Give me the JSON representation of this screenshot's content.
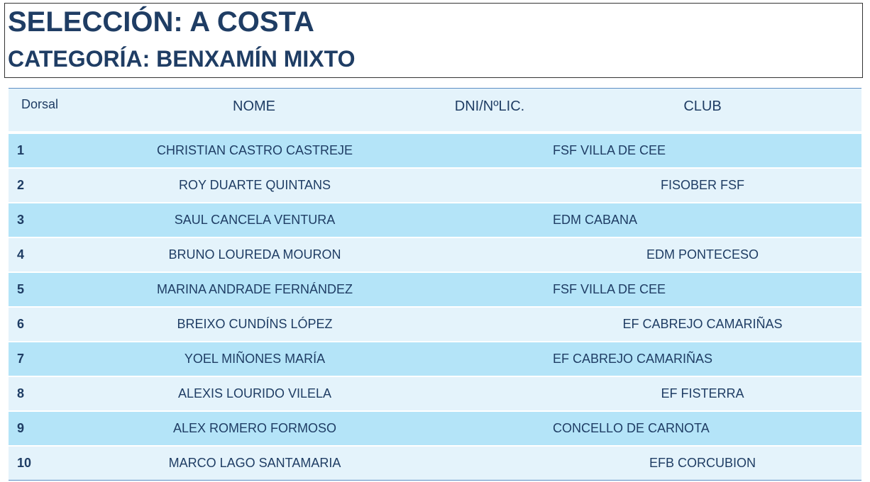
{
  "header": {
    "title": "SELECCIÓN: A COSTA",
    "subtitle": "CATEGORÍA: BENXAMÍN MIXTO"
  },
  "table": {
    "columns": {
      "dorsal": "Dorsal",
      "nome": "NOME",
      "dni": "DNI/NºLIC.",
      "club": "CLUB"
    },
    "rows": [
      {
        "num": "1",
        "name": "CHRISTIAN CASTRO CASTREJE",
        "dni": "",
        "club": "FSF VILLA DE CEE",
        "club_align": "left"
      },
      {
        "num": "2",
        "name": "ROY DUARTE QUINTANS",
        "dni": "",
        "club": "FISOBER FSF",
        "club_align": "center"
      },
      {
        "num": "3",
        "name": "SAUL CANCELA VENTURA",
        "dni": "",
        "club": "EDM CABANA",
        "club_align": "left"
      },
      {
        "num": "4",
        "name": "BRUNO LOUREDA MOURON",
        "dni": "",
        "club": "EDM PONTECESO",
        "club_align": "center"
      },
      {
        "num": "5",
        "name": "MARINA ANDRADE FERNÁNDEZ",
        "dni": "",
        "club": "FSF VILLA DE CEE",
        "club_align": "left"
      },
      {
        "num": "6",
        "name": "BREIXO CUNDÍNS LÓPEZ",
        "dni": "",
        "club": "EF CABREJO CAMARIÑAS",
        "club_align": "center"
      },
      {
        "num": "7",
        "name": "YOEL MIÑONES MARÍA",
        "dni": "",
        "club": "EF CABREJO CAMARIÑAS",
        "club_align": "left"
      },
      {
        "num": "8",
        "name": "ALEXIS LOURIDO VILELA",
        "dni": "",
        "club": "EF FISTERRA",
        "club_align": "center"
      },
      {
        "num": "9",
        "name": "ALEX ROMERO FORMOSO",
        "dni": "",
        "club": "CONCELLO DE CARNOTA",
        "club_align": "left"
      },
      {
        "num": "10",
        "name": "MARCO LAGO SANTAMARIA",
        "dni": "",
        "club": "EFB CORCUBION",
        "club_align": "center"
      }
    ]
  },
  "colors": {
    "text": "#1f3d64",
    "row_dark": "#b4e4f8",
    "row_light": "#e4f3fb",
    "rule": "#5b8fc4"
  }
}
